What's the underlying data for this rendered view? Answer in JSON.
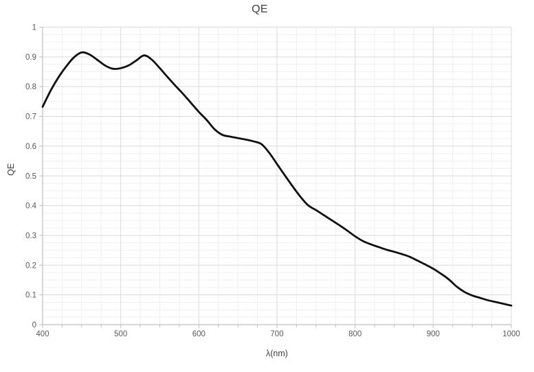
{
  "chart_data": {
    "type": "line",
    "title": "QE",
    "xlabel": "λ(nm)",
    "ylabel": "QE",
    "xlim": [
      400,
      1000
    ],
    "ylim": [
      0,
      1
    ],
    "x_major_ticks": [
      400,
      500,
      600,
      700,
      800,
      900,
      1000
    ],
    "x_tick_labels": [
      "400",
      "500",
      "600",
      "700",
      "800",
      "900",
      "1000"
    ],
    "y_major_ticks": [
      0,
      0.1,
      0.2,
      0.3,
      0.4,
      0.5,
      0.6,
      0.7,
      0.8,
      0.9,
      1
    ],
    "y_tick_labels": [
      "0",
      "0.1",
      "0.2",
      "0.3",
      "0.4",
      "0.5",
      "0.6",
      "0.7",
      "0.8",
      "0.9",
      "1"
    ],
    "x_minor_step": 25,
    "y_minor_step": 0.025,
    "grid": true,
    "legend_position": "none",
    "series": [
      {
        "name": "QE",
        "x": [
          400,
          410,
          420,
          430,
          440,
          450,
          460,
          470,
          480,
          490,
          500,
          510,
          520,
          530,
          540,
          550,
          560,
          570,
          580,
          590,
          600,
          610,
          620,
          630,
          640,
          650,
          660,
          670,
          680,
          690,
          700,
          710,
          720,
          730,
          740,
          750,
          760,
          770,
          780,
          790,
          800,
          810,
          820,
          830,
          840,
          850,
          860,
          870,
          880,
          890,
          900,
          910,
          920,
          930,
          940,
          950,
          960,
          970,
          980,
          990,
          1000
        ],
        "y": [
          0.732,
          0.785,
          0.83,
          0.867,
          0.898,
          0.915,
          0.908,
          0.89,
          0.871,
          0.86,
          0.862,
          0.871,
          0.888,
          0.905,
          0.89,
          0.862,
          0.832,
          0.803,
          0.775,
          0.745,
          0.715,
          0.688,
          0.657,
          0.638,
          0.632,
          0.627,
          0.622,
          0.616,
          0.607,
          0.578,
          0.54,
          0.502,
          0.465,
          0.43,
          0.401,
          0.385,
          0.368,
          0.351,
          0.334,
          0.316,
          0.297,
          0.281,
          0.27,
          0.261,
          0.252,
          0.245,
          0.237,
          0.228,
          0.215,
          0.202,
          0.188,
          0.171,
          0.152,
          0.128,
          0.11,
          0.098,
          0.09,
          0.082,
          0.076,
          0.07,
          0.064
        ]
      }
    ],
    "colors": {
      "line": "#0f0f0f",
      "major_grid": "#d9d9d9",
      "minor_grid": "#efefef",
      "axis": "#bfbfbf",
      "tick_label": "#595959",
      "title": "#404040"
    }
  }
}
